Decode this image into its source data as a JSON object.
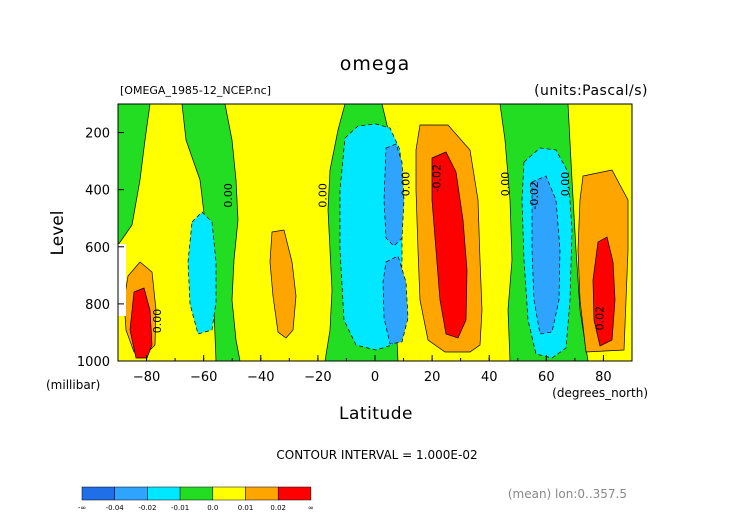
{
  "chart_data": {
    "type": "heatmap",
    "title": "omega",
    "file_label": "[OMEGA_1985-12_NCEP.nc]",
    "units_label": "(units:Pascal/s)",
    "xlabel": "Latitude",
    "x_units": "(degrees_north)",
    "ylabel": "Level",
    "y_units": "(millibar)",
    "xlim": [
      -90,
      90
    ],
    "ylim": [
      1000,
      100
    ],
    "x_ticks": [
      -80,
      -60,
      -40,
      -20,
      0,
      20,
      40,
      60,
      80
    ],
    "y_ticks": [
      200,
      400,
      600,
      800,
      1000
    ],
    "contour_interval_label": "CONTOUR INTERVAL = 1.000E-02",
    "mean_label": "(mean) lon:0..357.5",
    "contour_labels": [
      {
        "text": "0.00",
        "x": -50,
        "y": 420
      },
      {
        "text": "0.00",
        "x": -17,
        "y": 420
      },
      {
        "text": "0.00",
        "x": 12,
        "y": 380
      },
      {
        "text": "-0.02",
        "x": 23,
        "y": 360
      },
      {
        "text": "0.00",
        "x": 47,
        "y": 380
      },
      {
        "text": "-0.02",
        "x": 57,
        "y": 420
      },
      {
        "text": "0.00",
        "x": 68,
        "y": 380
      },
      {
        "text": "0.02",
        "x": 80,
        "y": 850
      },
      {
        "text": "0.00",
        "x": -75,
        "y": 860
      }
    ],
    "bands": [
      {
        "label": "-∞",
        "color": "#1f6fe8"
      },
      {
        "label": "-0.04",
        "color": "#2ea4ff"
      },
      {
        "label": "-0.02",
        "color": "#00e8ff"
      },
      {
        "label": "-0.01",
        "color": "#22dd22"
      },
      {
        "label": "0.0",
        "color": "#ffff00"
      },
      {
        "label": "0.01",
        "color": "#ffa500"
      },
      {
        "label": "0.02",
        "color": "#ff0000"
      },
      {
        "label": "∞",
        "color": ""
      }
    ]
  }
}
